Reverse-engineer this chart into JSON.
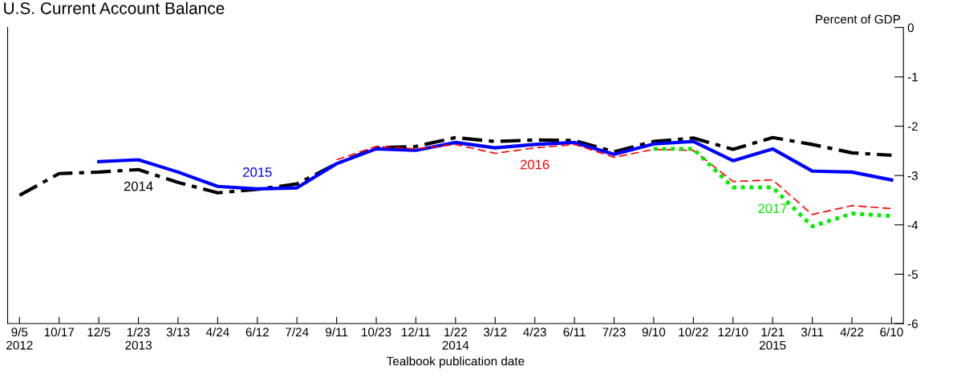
{
  "chart_data": {
    "type": "line",
    "title": "U.S. Current Account Balance",
    "ylabel": "Percent of GDP",
    "xlabel": "Tealbook publication date",
    "categories": [
      "9/5\n2012",
      "10/17",
      "12/5",
      "1/23\n2013",
      "3/13",
      "4/24",
      "6/12",
      "7/24",
      "9/11",
      "10/23",
      "12/11",
      "1/22\n2014",
      "3/12",
      "4/23",
      "6/11",
      "7/23",
      "9/10",
      "10/22",
      "12/10",
      "1/21\n2015",
      "3/11",
      "4/22",
      "6/10"
    ],
    "ylim": [
      -6,
      0
    ],
    "yticks": [
      -6,
      -5,
      -4,
      -3,
      -2,
      -1,
      0
    ],
    "grid": false,
    "legend": false,
    "series": [
      {
        "name": "2014",
        "color": "#000000",
        "line_style": "dashdot",
        "values": [
          -3.4,
          -2.96,
          -2.93,
          -2.88,
          -3.14,
          -3.35,
          -3.28,
          -3.17,
          -2.76,
          -2.44,
          -2.41,
          -2.23,
          -2.31,
          -2.28,
          -2.29,
          -2.52,
          -2.31,
          -2.24,
          -2.47,
          -2.23,
          -2.37,
          -2.54,
          -2.59
        ]
      },
      {
        "name": "2015",
        "color": "#0000ff",
        "line_style": "solid",
        "values": [
          null,
          null,
          -2.72,
          -2.68,
          -2.93,
          -3.22,
          -3.27,
          -3.25,
          -2.76,
          -2.46,
          -2.49,
          -2.33,
          -2.44,
          -2.37,
          -2.33,
          -2.57,
          -2.36,
          -2.31,
          -2.7,
          -2.46,
          -2.91,
          -2.93,
          -3.09
        ]
      },
      {
        "name": "2016",
        "color": "#ff0000",
        "line_style": "dashed",
        "values": [
          null,
          null,
          null,
          null,
          null,
          null,
          null,
          null,
          -2.68,
          -2.41,
          -2.46,
          -2.37,
          -2.55,
          -2.44,
          -2.37,
          -2.63,
          -2.47,
          -2.49,
          -3.12,
          -3.09,
          -3.79,
          -3.61,
          -3.67
        ]
      },
      {
        "name": "2017",
        "color": "#00ee00",
        "line_style": "dotted",
        "values": [
          null,
          null,
          null,
          null,
          null,
          null,
          null,
          null,
          null,
          null,
          null,
          null,
          null,
          null,
          null,
          null,
          -2.46,
          -2.46,
          -3.24,
          -3.24,
          -4.03,
          -3.77,
          -3.82
        ]
      }
    ]
  }
}
